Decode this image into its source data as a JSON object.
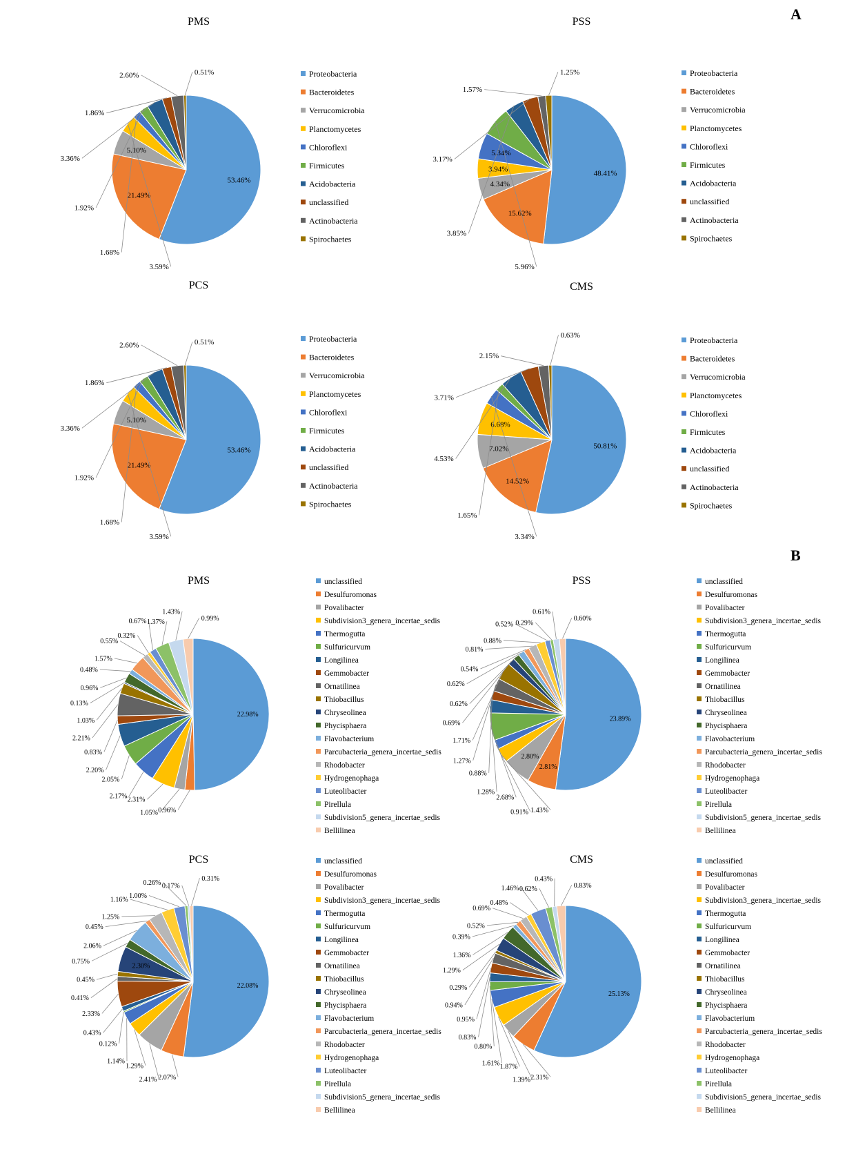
{
  "panels": {
    "A": "A",
    "B": "B"
  },
  "chart_data": [
    {
      "id": "A-PMS",
      "type": "pie",
      "title": "PMS",
      "panel": "A",
      "categories": [
        "Proteobacteria",
        "Bacteroidetes",
        "Verrucomicrobia",
        "Planctomycetes",
        "Chloroflexi",
        "Firmicutes",
        "Acidobacteria",
        "unclassified",
        "Actinobacteria",
        "Spirochaetes"
      ],
      "values": [
        53.46,
        21.49,
        5.1,
        3.59,
        1.68,
        1.92,
        3.36,
        1.86,
        2.6,
        0.51
      ],
      "labels": [
        "53.46%",
        "21.49%",
        "5.10%",
        "3.59%",
        "1.68%",
        "1.92%",
        "3.36%",
        "1.86%",
        "2.60%",
        "0.51%"
      ],
      "inside": [
        true,
        true,
        true,
        false,
        false,
        false,
        false,
        false,
        false,
        false
      ]
    },
    {
      "id": "A-PSS",
      "type": "pie",
      "title": "PSS",
      "panel": "A",
      "categories": [
        "Proteobacteria",
        "Bacteroidetes",
        "Verrucomicrobia",
        "Planctomycetes",
        "Chloroflexi",
        "Firmicutes",
        "Acidobacteria",
        "unclassified",
        "Actinobacteria",
        "Spirochaetes"
      ],
      "values": [
        48.41,
        15.62,
        4.34,
        3.94,
        5.34,
        5.96,
        3.85,
        3.17,
        1.57,
        1.25
      ],
      "labels": [
        "48.41%",
        "15.62%",
        "4.34%",
        "3.94%",
        "5.34%",
        "5.96%",
        "3.85%",
        "3.17%",
        "1.57%",
        "1.25%"
      ],
      "inside": [
        true,
        true,
        true,
        true,
        true,
        false,
        false,
        false,
        false,
        false
      ]
    },
    {
      "id": "A-PCS",
      "type": "pie",
      "title": "PCS",
      "panel": "A",
      "categories": [
        "Proteobacteria",
        "Bacteroidetes",
        "Verrucomicrobia",
        "Planctomycetes",
        "Chloroflexi",
        "Firmicutes",
        "Acidobacteria",
        "unclassified",
        "Actinobacteria",
        "Spirochaetes"
      ],
      "values": [
        53.46,
        21.49,
        5.1,
        3.59,
        1.68,
        1.92,
        3.36,
        1.86,
        2.6,
        0.51
      ],
      "labels": [
        "53.46%",
        "21.49%",
        "5.10%",
        "3.59%",
        "1.68%",
        "1.92%",
        "3.36%",
        "1.86%",
        "2.60%",
        "0.51%"
      ],
      "inside": [
        true,
        true,
        true,
        false,
        false,
        false,
        false,
        false,
        false,
        false
      ]
    },
    {
      "id": "A-CMS",
      "type": "pie",
      "title": "CMS",
      "panel": "A",
      "categories": [
        "Proteobacteria",
        "Bacteroidetes",
        "Verrucomicrobia",
        "Planctomycetes",
        "Chloroflexi",
        "Firmicutes",
        "Acidobacteria",
        "unclassified",
        "Actinobacteria",
        "Spirochaetes"
      ],
      "values": [
        50.81,
        14.52,
        7.02,
        6.68,
        3.34,
        1.65,
        4.53,
        3.71,
        2.15,
        0.63
      ],
      "labels": [
        "50.81%",
        "14.52%",
        "7.02%",
        "6.68%",
        "3.34%",
        "1.65%",
        "4.53%",
        "3.71%",
        "2.15%",
        "0.63%"
      ],
      "inside": [
        true,
        true,
        true,
        true,
        false,
        false,
        false,
        false,
        false,
        false
      ]
    },
    {
      "id": "B-PMS",
      "type": "pie",
      "title": "PMS",
      "panel": "B",
      "categories": [
        "unclassified",
        "Desulfuromonas",
        "Povalibacter",
        "Subdivision3_genera_incertae_sedis",
        "Thermogutta",
        "Sulfuricurvum",
        "Longilinea",
        "Gemmobacter",
        "Ornatilinea",
        "Thiobacillus",
        "Chryseolinea",
        "Phycisphaera",
        "Flavobacterium",
        "Parcubacteria_genera_incertae_sedis",
        "Rhodobacter",
        "Hydrogenophaga",
        "Luteolibacter",
        "Pirellula",
        "Subdivision5_genera_incertae_sedis",
        "Bellilinea"
      ],
      "values": [
        22.98,
        0.96,
        1.05,
        2.31,
        2.17,
        2.05,
        2.2,
        0.83,
        2.21,
        1.03,
        0.13,
        0.96,
        0.48,
        1.57,
        0.55,
        0.32,
        0.67,
        1.37,
        1.43,
        0.99
      ],
      "labels": [
        "22.98%",
        "0.96%",
        "1.05%",
        "2.31%",
        "2.17%",
        "2.05%",
        "2.20%",
        "0.83%",
        "2.21%",
        "1.03%",
        "0.13%",
        "0.96%",
        "0.48%",
        "1.57%",
        "0.55%",
        "0.32%",
        "0.67%",
        "1.37%",
        "1.43%",
        "0.99%"
      ],
      "inside": [
        true,
        false,
        false,
        false,
        false,
        false,
        false,
        false,
        false,
        false,
        false,
        false,
        false,
        false,
        false,
        false,
        false,
        false,
        false,
        false
      ]
    },
    {
      "id": "B-PSS",
      "type": "pie",
      "title": "PSS",
      "panel": "B",
      "categories": [
        "unclassified",
        "Desulfuromonas",
        "Povalibacter",
        "Subdivision3_genera_incertae_sedis",
        "Thermogutta",
        "Sulfuricurvum",
        "Longilinea",
        "Gemmobacter",
        "Ornatilinea",
        "Thiobacillus",
        "Chryseolinea",
        "Phycisphaera",
        "Flavobacterium",
        "Parcubacteria_genera_incertae_sedis",
        "Rhodobacter",
        "Hydrogenophaga",
        "Luteolibacter",
        "Pirellula",
        "Subdivision5_genera_incertae_sedis",
        "Bellilinea"
      ],
      "values": [
        23.89,
        2.81,
        2.8,
        1.43,
        0.91,
        2.68,
        1.28,
        0.88,
        1.27,
        1.71,
        0.69,
        0.62,
        0.62,
        0.54,
        0.81,
        0.88,
        0.52,
        0.29,
        0.61,
        0.6
      ],
      "labels": [
        "23.89%",
        "2.81%",
        "2.80%",
        "1.43%",
        "0.91%",
        "2.68%",
        "1.28%",
        "0.88%",
        "1.27%",
        "1.71%",
        "0.69%",
        "0.62%",
        "0.62%",
        "0.54%",
        "0.81%",
        "0.88%",
        "0.52%",
        "0.29%",
        "0.61%",
        "0.60%"
      ],
      "inside": [
        true,
        true,
        true,
        false,
        false,
        false,
        false,
        false,
        false,
        false,
        false,
        false,
        false,
        false,
        false,
        false,
        false,
        false,
        false,
        false
      ]
    },
    {
      "id": "B-PCS",
      "type": "pie",
      "title": "PCS",
      "panel": "B",
      "categories": [
        "unclassified",
        "Desulfuromonas",
        "Povalibacter",
        "Subdivision3_genera_incertae_sedis",
        "Thermogutta",
        "Sulfuricurvum",
        "Longilinea",
        "Gemmobacter",
        "Ornatilinea",
        "Thiobacillus",
        "Chryseolinea",
        "Phycisphaera",
        "Flavobacterium",
        "Parcubacteria_genera_incertae_sedis",
        "Rhodobacter",
        "Hydrogenophaga",
        "Luteolibacter",
        "Pirellula",
        "Subdivision5_genera_incertae_sedis",
        "Bellilinea"
      ],
      "values": [
        22.08,
        2.07,
        2.41,
        1.29,
        1.14,
        0.12,
        0.43,
        2.33,
        0.41,
        0.45,
        2.3,
        0.75,
        2.06,
        0.45,
        1.25,
        1.16,
        1.0,
        0.26,
        0.17,
        0.31
      ],
      "labels": [
        "22.08%",
        "2.07%",
        "2.41%",
        "1.29%",
        "1.14%",
        "0.12%",
        "0.43%",
        "2.33%",
        "0.41%",
        "0.45%",
        "2.30%",
        "0.75%",
        "2.06%",
        "0.45%",
        "1.25%",
        "1.16%",
        "1.00%",
        "0.26%",
        "0.17%",
        "0.31%"
      ],
      "inside": [
        true,
        false,
        false,
        false,
        false,
        false,
        false,
        false,
        false,
        false,
        true,
        false,
        false,
        false,
        false,
        false,
        false,
        false,
        false,
        false
      ]
    },
    {
      "id": "B-CMS",
      "type": "pie",
      "title": "CMS",
      "panel": "B",
      "categories": [
        "unclassified",
        "Desulfuromonas",
        "Povalibacter",
        "Subdivision3_genera_incertae_sedis",
        "Thermogutta",
        "Sulfuricurvum",
        "Longilinea",
        "Gemmobacter",
        "Ornatilinea",
        "Thiobacillus",
        "Chryseolinea",
        "Phycisphaera",
        "Flavobacterium",
        "Parcubacteria_genera_incertae_sedis",
        "Rhodobacter",
        "Hydrogenophaga",
        "Luteolibacter",
        "Pirellula",
        "Subdivision5_genera_incertae_sedis",
        "Bellilinea"
      ],
      "values": [
        25.13,
        2.31,
        1.39,
        1.87,
        1.61,
        0.8,
        0.83,
        0.95,
        0.94,
        0.29,
        1.29,
        1.36,
        0.39,
        0.52,
        0.69,
        0.48,
        1.46,
        0.62,
        0.43,
        0.83
      ],
      "labels": [
        "25.13%",
        "2.31%",
        "1.39%",
        "1.87%",
        "1.61%",
        "0.80%",
        "0.83%",
        "0.95%",
        "0.94%",
        "0.29%",
        "1.29%",
        "1.36%",
        "0.39%",
        "0.52%",
        "0.69%",
        "0.48%",
        "1.46%",
        "0.62%",
        "0.43%",
        "0.83%"
      ],
      "inside": [
        true,
        false,
        false,
        false,
        false,
        false,
        false,
        false,
        false,
        false,
        false,
        false,
        false,
        false,
        false,
        false,
        false,
        false,
        false,
        false
      ]
    }
  ],
  "colors": {
    "phylum": [
      "#5B9BD5",
      "#ED7D31",
      "#A5A5A5",
      "#FFC000",
      "#4472C4",
      "#70AD47",
      "#255E91",
      "#9E480E",
      "#636363",
      "#997300"
    ],
    "genus": [
      "#5B9BD5",
      "#ED7D31",
      "#A5A5A5",
      "#FFC000",
      "#4472C4",
      "#70AD47",
      "#255E91",
      "#9E480E",
      "#636363",
      "#997300",
      "#264478",
      "#43682B",
      "#7CAFDD",
      "#F1975A",
      "#B7B7B7",
      "#FFCD33",
      "#698ED0",
      "#8CC168",
      "#C5D9EE",
      "#F8CBAD"
    ]
  }
}
